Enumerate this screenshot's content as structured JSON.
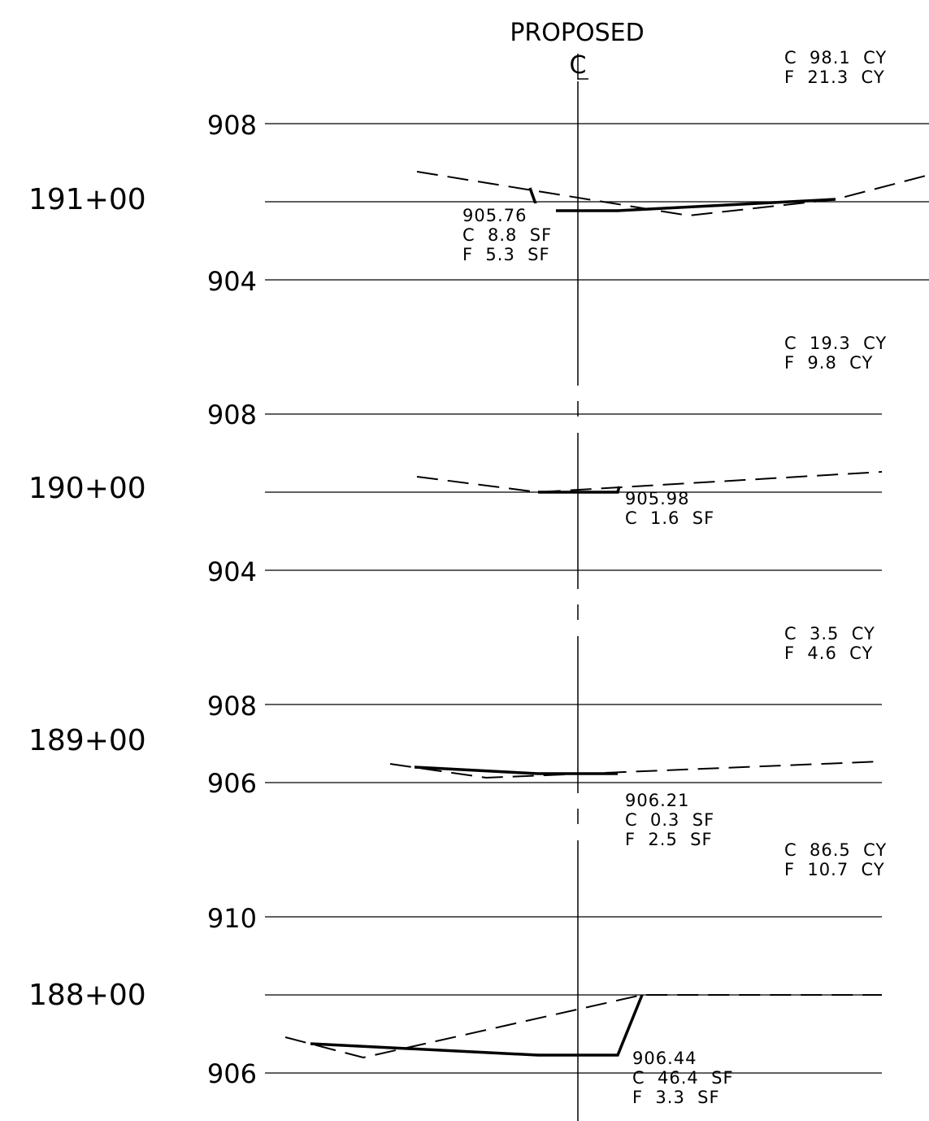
{
  "header": {
    "title": "PROPOSED",
    "centerline_symbol": "CL"
  },
  "sections": [
    {
      "station": "191+00",
      "elevation_labels": [
        "908",
        "904"
      ],
      "profile_elevation": "905.76",
      "area_cut": "C  8.8  SF",
      "area_fill": "F  5.3  SF",
      "volume_cut": "C  98.1  CY",
      "volume_fill": "F  21.3  CY"
    },
    {
      "station": "190+00",
      "elevation_labels": [
        "908",
        "904"
      ],
      "profile_elevation": "905.98",
      "area_cut": "C  1.6  SF",
      "volume_cut": "C  19.3  CY",
      "volume_fill": "F  9.8  CY"
    },
    {
      "station": "189+00",
      "elevation_labels": [
        "908",
        "906"
      ],
      "profile_elevation": "906.21",
      "area_cut": "C  0.3  SF",
      "area_fill": "F  2.5  SF",
      "volume_cut": "C  3.5  CY",
      "volume_fill": "F  4.6  CY"
    },
    {
      "station": "188+00",
      "elevation_labels": [
        "910",
        "906"
      ],
      "profile_elevation": "906.44",
      "area_cut": "C  46.4  SF",
      "area_fill": "F  3.3  SF",
      "volume_cut": "C  86.5  CY",
      "volume_fill": "F  10.7  CY"
    }
  ]
}
